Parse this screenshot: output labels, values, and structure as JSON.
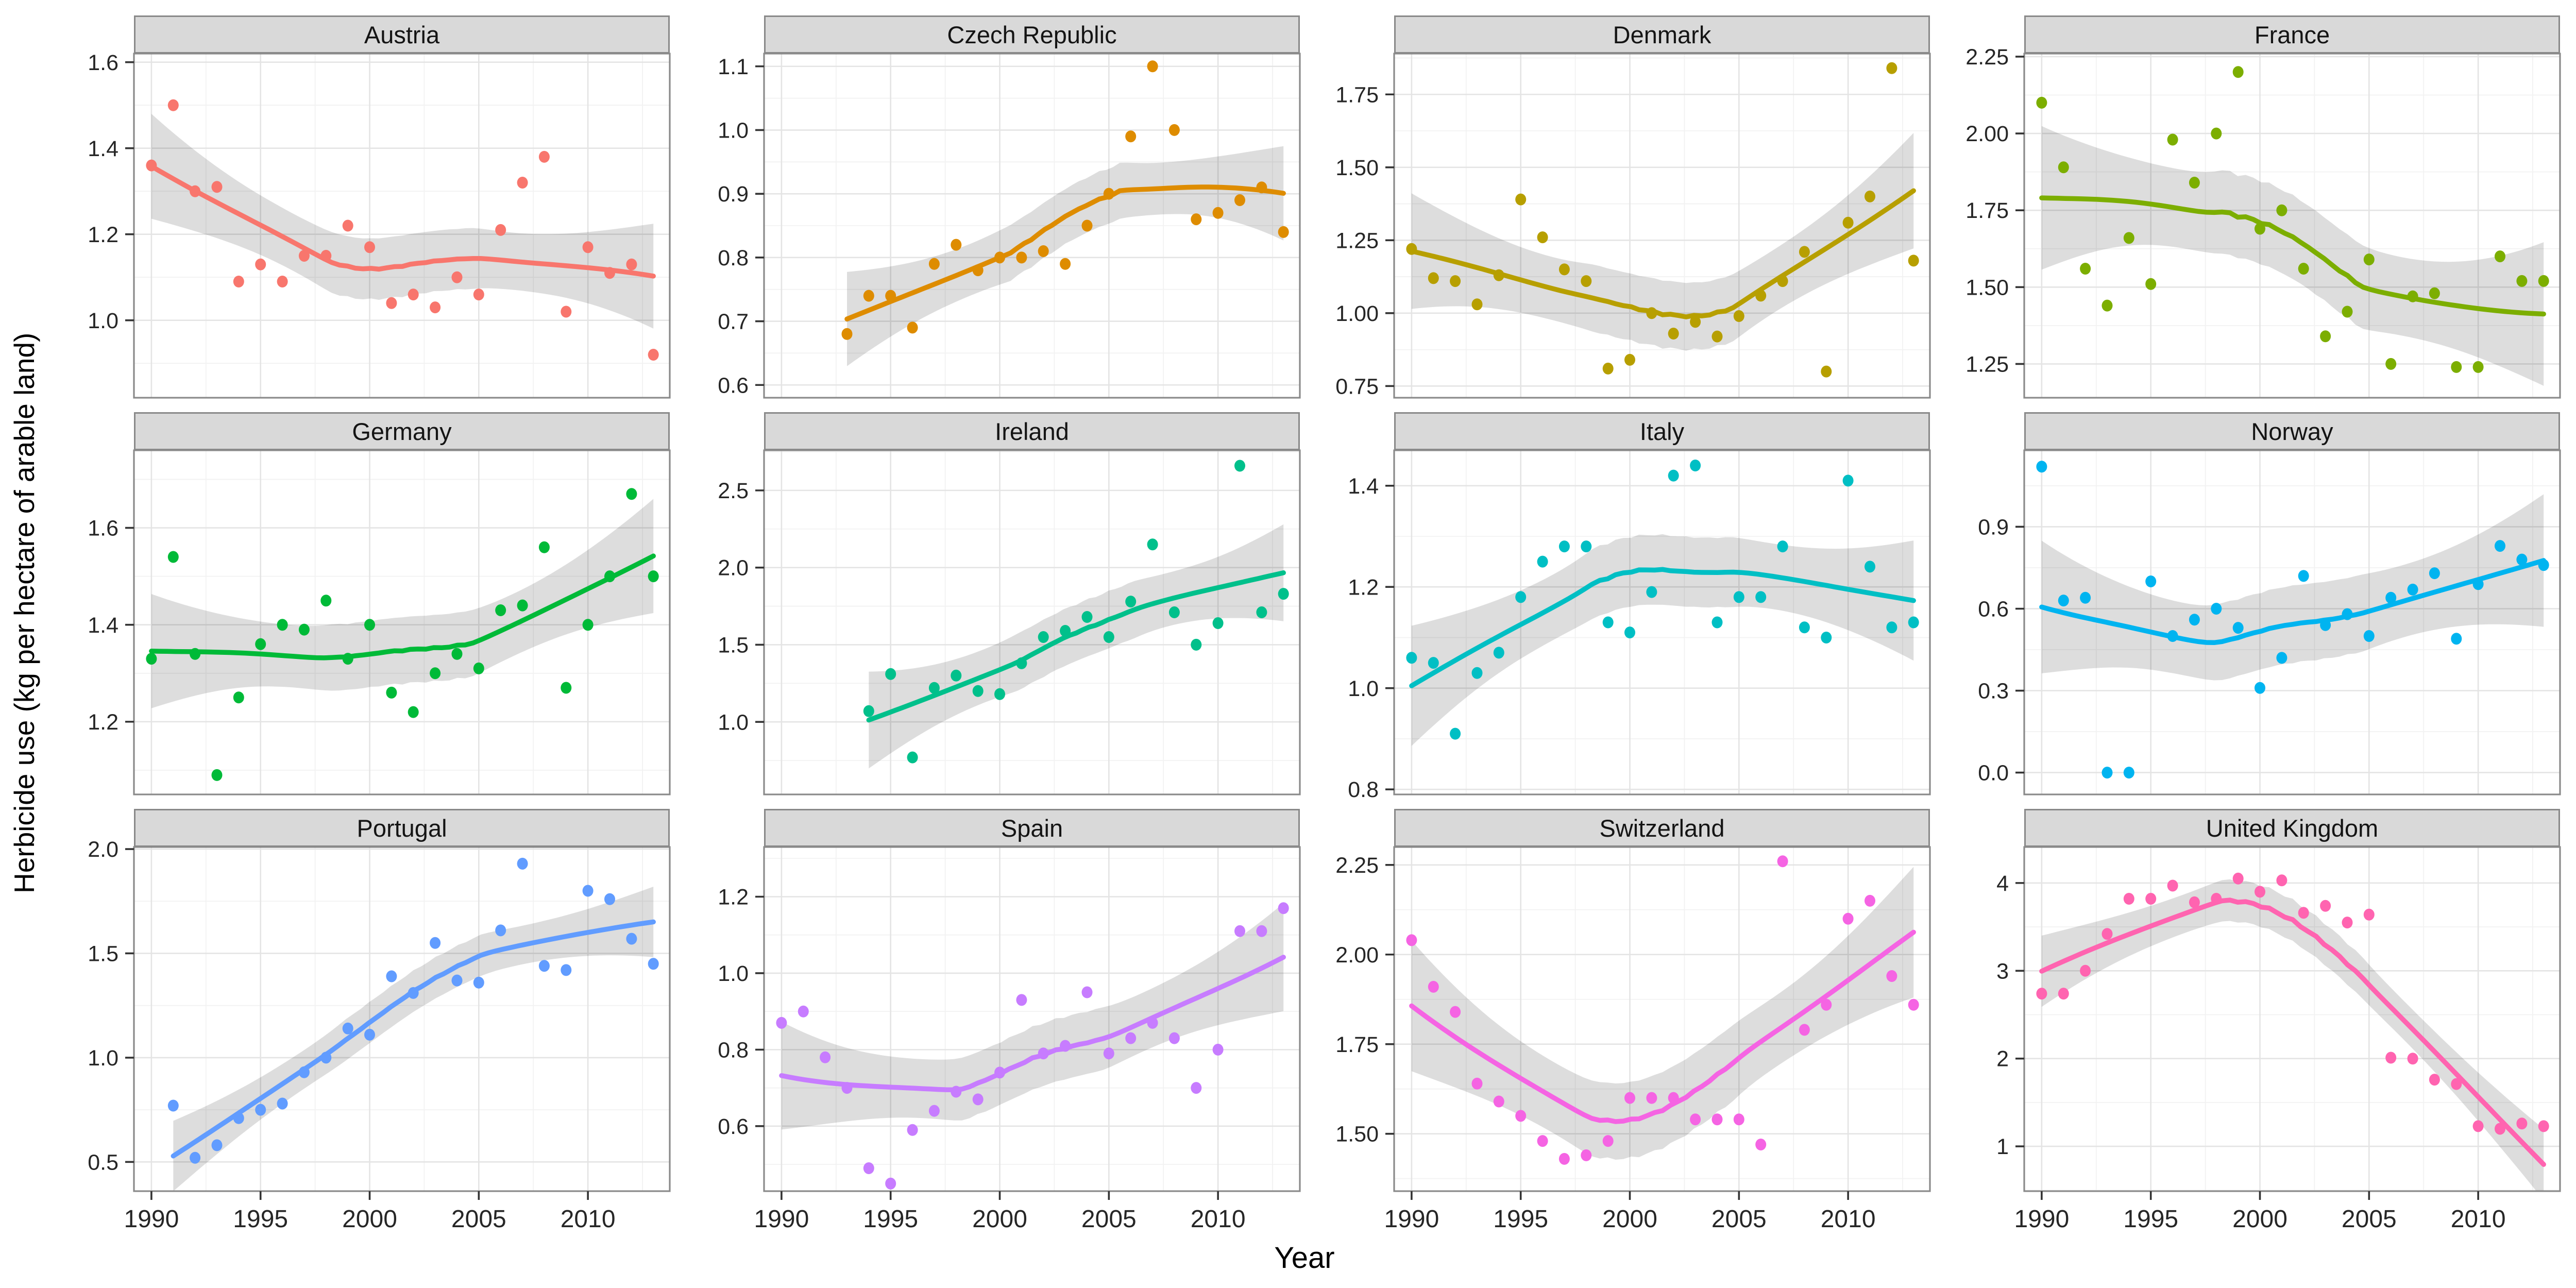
{
  "y_axis_title": "Herbicide use (kg per hectare of arable land)",
  "x_axis_title": "Year",
  "x_axis": {
    "lim": [
      1989.2,
      2013.75
    ],
    "ticks": [
      1990,
      1995,
      2000,
      2005,
      2010
    ],
    "tick_labels": [
      "1990",
      "1995",
      "2000",
      "2005",
      "2010"
    ],
    "minor": [
      1992.5,
      1997.5,
      2002.5,
      2007.5,
      2012.5
    ]
  },
  "smooth": {
    "method": "loess",
    "span": 0.75,
    "ci_level": 0.95
  },
  "style": {
    "strip_bg": "#D9D9D9",
    "strip_border": "#898989",
    "panel_border": "#8A8A8A",
    "grid_major": "#E4E4E4",
    "grid_minor": "#F2F2F2",
    "ci_band": "rgba(0,0,0,0.135)",
    "tick_text": "#262626"
  },
  "chart_data": [
    {
      "type": "scatter-smooth",
      "title": "Austria",
      "color": "#F8766D",
      "ylim": [
        0.82,
        1.62
      ],
      "yticks": [
        1.0,
        1.2,
        1.4,
        1.6
      ],
      "ytick_labels": [
        "1.0",
        "1.2",
        "1.4",
        "1.6"
      ],
      "x": [
        1990,
        1991,
        1992,
        1993,
        1994,
        1995,
        1996,
        1997,
        1998,
        1999,
        2000,
        2001,
        2002,
        2003,
        2004,
        2005,
        2006,
        2007,
        2008,
        2009,
        2010,
        2011,
        2012,
        2013
      ],
      "y": [
        1.36,
        1.5,
        1.3,
        1.31,
        1.09,
        1.13,
        1.09,
        1.15,
        1.15,
        1.22,
        1.17,
        1.04,
        1.06,
        1.03,
        1.1,
        1.06,
        1.21,
        1.32,
        1.38,
        1.02,
        1.17,
        1.11,
        1.13,
        0.92
      ]
    },
    {
      "type": "scatter-smooth",
      "title": "Czech Republic",
      "color": "#DE8C00",
      "ylim": [
        0.58,
        1.12
      ],
      "yticks": [
        0.6,
        0.7,
        0.8,
        0.9,
        1.0,
        1.1
      ],
      "ytick_labels": [
        "0.6",
        "0.7",
        "0.8",
        "0.9",
        "1.0",
        "1.1"
      ],
      "x": [
        1993,
        1994,
        1995,
        1996,
        1997,
        1998,
        1999,
        2000,
        2001,
        2002,
        2003,
        2004,
        2005,
        2006,
        2007,
        2008,
        2009,
        2010,
        2011,
        2012,
        2013
      ],
      "y": [
        0.68,
        0.74,
        0.74,
        0.69,
        0.79,
        0.82,
        0.78,
        0.8,
        0.8,
        0.81,
        0.79,
        0.85,
        0.9,
        0.99,
        1.1,
        1.0,
        0.86,
        0.87,
        0.89,
        0.91,
        0.84
      ]
    },
    {
      "type": "scatter-smooth",
      "title": "Denmark",
      "color": "#B79F00",
      "ylim": [
        0.71,
        1.89
      ],
      "yticks": [
        0.75,
        1.0,
        1.25,
        1.5,
        1.75
      ],
      "ytick_labels": [
        "0.75",
        "1.00",
        "1.25",
        "1.50",
        "1.75"
      ],
      "x": [
        1990,
        1991,
        1992,
        1993,
        1994,
        1995,
        1996,
        1997,
        1998,
        1999,
        2000,
        2001,
        2002,
        2003,
        2004,
        2005,
        2006,
        2007,
        2008,
        2009,
        2010,
        2011,
        2012,
        2013
      ],
      "y": [
        1.22,
        1.12,
        1.11,
        1.03,
        1.13,
        1.39,
        1.26,
        1.15,
        1.11,
        0.81,
        0.84,
        1.0,
        0.93,
        0.97,
        0.92,
        0.99,
        1.06,
        1.11,
        1.21,
        0.8,
        1.31,
        1.4,
        1.84,
        1.18
      ]
    },
    {
      "type": "scatter-smooth",
      "title": "France",
      "color": "#7CAE00",
      "ylim": [
        1.14,
        2.26
      ],
      "yticks": [
        1.25,
        1.5,
        1.75,
        2.0,
        2.25
      ],
      "ytick_labels": [
        "1.25",
        "1.50",
        "1.75",
        "2.00",
        "2.25"
      ],
      "x": [
        1990,
        1991,
        1992,
        1993,
        1994,
        1995,
        1996,
        1997,
        1998,
        1999,
        2000,
        2001,
        2002,
        2003,
        2004,
        2005,
        2006,
        2007,
        2008,
        2009,
        2010,
        2011,
        2012,
        2013
      ],
      "y": [
        2.1,
        1.89,
        1.56,
        1.44,
        1.66,
        1.51,
        1.98,
        1.84,
        2.0,
        2.2,
        1.69,
        1.75,
        1.56,
        1.34,
        1.42,
        1.59,
        1.25,
        1.47,
        1.48,
        1.24,
        1.24,
        1.6,
        1.52,
        1.52
      ]
    },
    {
      "type": "scatter-smooth",
      "title": "Germany",
      "color": "#00BA38",
      "ylim": [
        1.05,
        1.76
      ],
      "yticks": [
        1.2,
        1.4,
        1.6
      ],
      "ytick_labels": [
        "1.2",
        "1.4",
        "1.6"
      ],
      "x": [
        1990,
        1991,
        1992,
        1993,
        1994,
        1995,
        1996,
        1997,
        1998,
        1999,
        2000,
        2001,
        2002,
        2003,
        2004,
        2005,
        2006,
        2007,
        2008,
        2009,
        2010,
        2011,
        2012,
        2013
      ],
      "y": [
        1.33,
        1.54,
        1.34,
        1.09,
        1.25,
        1.36,
        1.4,
        1.39,
        1.45,
        1.33,
        1.4,
        1.26,
        1.22,
        1.3,
        1.34,
        1.31,
        1.43,
        1.44,
        1.56,
        1.27,
        1.4,
        1.5,
        1.67,
        1.5
      ]
    },
    {
      "type": "scatter-smooth",
      "title": "Ireland",
      "color": "#00C08B",
      "ylim": [
        0.53,
        2.76
      ],
      "yticks": [
        1.0,
        1.5,
        2.0,
        2.5
      ],
      "ytick_labels": [
        "1.0",
        "1.5",
        "2.0",
        "2.5"
      ],
      "x": [
        1994,
        1995,
        1996,
        1997,
        1998,
        1999,
        2000,
        2001,
        2002,
        2003,
        2004,
        2005,
        2006,
        2007,
        2008,
        2009,
        2010,
        2011,
        2012,
        2013
      ],
      "y": [
        1.07,
        1.31,
        0.77,
        1.22,
        1.3,
        1.2,
        1.18,
        1.38,
        1.55,
        1.59,
        1.68,
        1.55,
        1.78,
        2.15,
        1.71,
        1.5,
        1.64,
        2.66,
        1.71,
        1.83
      ]
    },
    {
      "type": "scatter-smooth",
      "title": "Italy",
      "color": "#00BFC4",
      "ylim": [
        0.79,
        1.47
      ],
      "yticks": [
        0.8,
        1.0,
        1.2,
        1.4
      ],
      "ytick_labels": [
        "0.8",
        "1.0",
        "1.2",
        "1.4"
      ],
      "x": [
        1990,
        1991,
        1992,
        1993,
        1994,
        1995,
        1996,
        1997,
        1998,
        1999,
        2000,
        2001,
        2002,
        2003,
        2004,
        2005,
        2006,
        2007,
        2008,
        2009,
        2010,
        2011,
        2012,
        2013
      ],
      "y": [
        1.06,
        1.05,
        0.91,
        1.03,
        1.07,
        1.18,
        1.25,
        1.28,
        1.28,
        1.13,
        1.11,
        1.19,
        1.42,
        1.44,
        1.13,
        1.18,
        1.18,
        1.28,
        1.12,
        1.1,
        1.41,
        1.24,
        1.12,
        1.13
      ]
    },
    {
      "type": "scatter-smooth",
      "title": "Norway",
      "color": "#00B4F0",
      "ylim": [
        -0.08,
        1.18
      ],
      "yticks": [
        0.0,
        0.3,
        0.6,
        0.9
      ],
      "ytick_labels": [
        "0.0",
        "0.3",
        "0.6",
        "0.9"
      ],
      "x": [
        1990,
        1991,
        1992,
        1993,
        1994,
        1995,
        1996,
        1997,
        1998,
        1999,
        2000,
        2001,
        2002,
        2003,
        2004,
        2005,
        2006,
        2007,
        2008,
        2009,
        2010,
        2011,
        2012,
        2013
      ],
      "y": [
        1.12,
        0.63,
        0.64,
        0.0,
        0.0,
        0.7,
        0.5,
        0.56,
        0.6,
        0.53,
        0.31,
        0.42,
        0.72,
        0.54,
        0.58,
        0.5,
        0.64,
        0.67,
        0.73,
        0.49,
        0.69,
        0.83,
        0.78,
        0.76
      ]
    },
    {
      "type": "scatter-smooth",
      "title": "Portugal",
      "color": "#619CFF",
      "ylim": [
        0.36,
        2.01
      ],
      "yticks": [
        0.5,
        1.0,
        1.5,
        2.0
      ],
      "ytick_labels": [
        "0.5",
        "1.0",
        "1.5",
        "2.0"
      ],
      "x": [
        1991,
        1992,
        1993,
        1994,
        1995,
        1996,
        1997,
        1998,
        1999,
        2000,
        2001,
        2002,
        2003,
        2004,
        2005,
        2006,
        2007,
        2008,
        2009,
        2010,
        2011,
        2012,
        2013
      ],
      "y": [
        0.77,
        0.52,
        0.58,
        0.71,
        0.75,
        0.78,
        0.93,
        1.0,
        1.14,
        1.11,
        1.39,
        1.31,
        1.55,
        1.37,
        1.36,
        1.61,
        1.93,
        1.44,
        1.42,
        1.8,
        1.76,
        1.57,
        1.45
      ]
    },
    {
      "type": "scatter-smooth",
      "title": "Spain",
      "color": "#C77CFF",
      "ylim": [
        0.43,
        1.33
      ],
      "yticks": [
        0.6,
        0.8,
        1.0,
        1.2
      ],
      "ytick_labels": [
        "0.6",
        "0.8",
        "1.0",
        "1.2"
      ],
      "x": [
        1990,
        1991,
        1992,
        1993,
        1994,
        1995,
        1996,
        1997,
        1998,
        1999,
        2000,
        2001,
        2002,
        2003,
        2004,
        2005,
        2006,
        2007,
        2008,
        2009,
        2010,
        2011,
        2012,
        2013
      ],
      "y": [
        0.87,
        0.9,
        0.78,
        0.7,
        0.49,
        0.45,
        0.59,
        0.64,
        0.69,
        0.67,
        0.74,
        0.93,
        0.79,
        0.81,
        0.95,
        0.79,
        0.83,
        0.87,
        0.83,
        0.7,
        0.8,
        1.11,
        1.11,
        1.17
      ]
    },
    {
      "type": "scatter-smooth",
      "title": "Switzerland",
      "color": "#F564E3",
      "ylim": [
        1.34,
        2.3
      ],
      "yticks": [
        1.5,
        1.75,
        2.0,
        2.25
      ],
      "ytick_labels": [
        "1.50",
        "1.75",
        "2.00",
        "2.25"
      ],
      "x": [
        1990,
        1991,
        1992,
        1993,
        1994,
        1995,
        1996,
        1997,
        1998,
        1999,
        2000,
        2001,
        2002,
        2003,
        2004,
        2005,
        2006,
        2007,
        2008,
        2009,
        2010,
        2011,
        2012,
        2013
      ],
      "y": [
        2.04,
        1.91,
        1.84,
        1.64,
        1.59,
        1.55,
        1.48,
        1.43,
        1.44,
        1.48,
        1.6,
        1.6,
        1.6,
        1.54,
        1.54,
        1.54,
        1.47,
        2.26,
        1.79,
        1.86,
        2.1,
        2.15,
        1.94,
        1.86
      ]
    },
    {
      "type": "scatter-smooth",
      "title": "United Kingdom",
      "color": "#FF64B0",
      "ylim": [
        0.49,
        4.41
      ],
      "yticks": [
        1,
        2,
        3,
        4
      ],
      "ytick_labels": [
        "1",
        "2",
        "3",
        "4"
      ],
      "x": [
        1990,
        1991,
        1992,
        1993,
        1994,
        1995,
        1996,
        1997,
        1998,
        1999,
        2000,
        2001,
        2002,
        2003,
        2004,
        2005,
        2006,
        2007,
        2008,
        2009,
        2010,
        2011,
        2012,
        2013
      ],
      "y": [
        2.74,
        2.74,
        3.0,
        3.42,
        3.82,
        3.82,
        3.97,
        3.78,
        3.82,
        4.05,
        3.9,
        4.03,
        3.66,
        3.74,
        3.55,
        3.64,
        2.01,
        2.0,
        1.76,
        1.71,
        1.23,
        1.2,
        1.26,
        1.23
      ]
    }
  ]
}
